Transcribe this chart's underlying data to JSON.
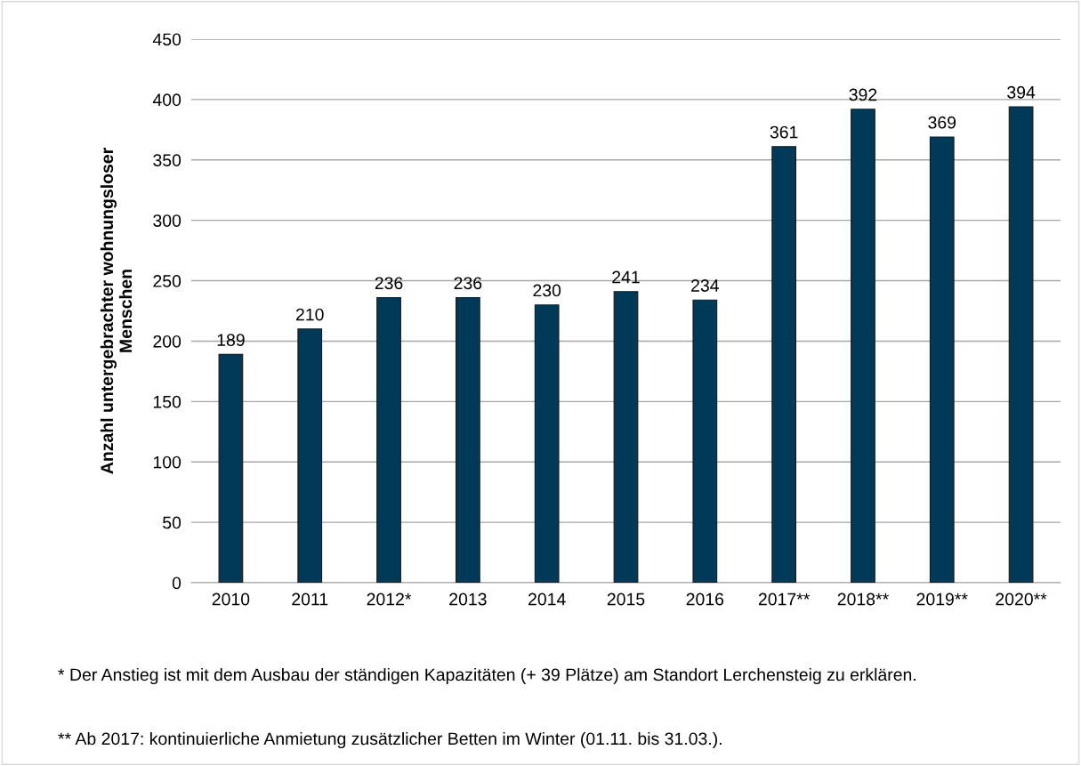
{
  "chart_data": {
    "type": "bar",
    "ylabel": "Anzahl untergebrachter wohnungsloser\nMenschen",
    "categories": [
      "2010",
      "2011",
      "2012*",
      "2013",
      "2014",
      "2015",
      "2016",
      "2017**",
      "2018**",
      "2019**",
      "2020**"
    ],
    "values": [
      189,
      210,
      236,
      236,
      230,
      241,
      234,
      361,
      392,
      369,
      394
    ],
    "color": "#003a58",
    "ylim": [
      0,
      450
    ],
    "yticks": [
      0,
      50,
      100,
      150,
      200,
      250,
      300,
      350,
      400,
      450
    ],
    "grid": "y",
    "data_labels": true,
    "annotations": [
      "* Der Anstieg ist mit dem Ausbau der ständigen Kapazitäten (+ 39 Plätze) am Standort Lerchensteig zu erklären.",
      "** Ab 2017: kontinuierliche Anmietung zusätzlicher Betten im Winter (01.11. bis 31.03.)."
    ]
  }
}
